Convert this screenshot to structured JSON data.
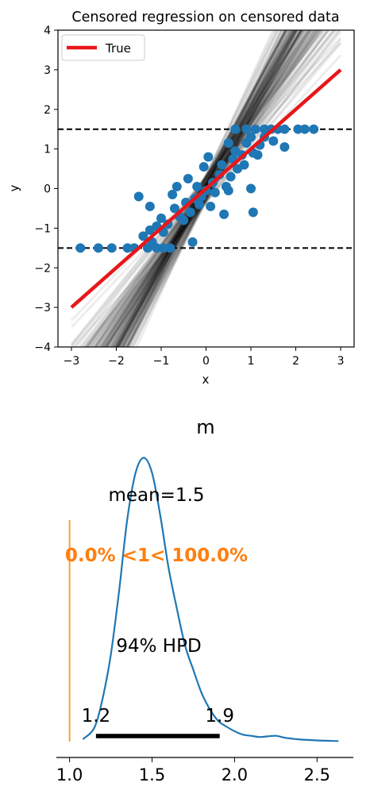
{
  "chart_data": [
    {
      "type": "scatter",
      "title": "Censored regression on censored data",
      "xlabel": "x",
      "ylabel": "y",
      "xlim": [
        -3.3,
        3.3
      ],
      "ylim": [
        -4,
        4
      ],
      "xticks": [
        -3,
        -2,
        -1,
        0,
        1,
        2,
        3
      ],
      "xtick_labels": [
        "−3",
        "−2",
        "−1",
        "0",
        "1",
        "2",
        "3"
      ],
      "yticks": [
        -4,
        -3,
        -2,
        -1,
        0,
        1,
        2,
        3,
        4
      ],
      "ytick_labels": [
        "−4",
        "−3",
        "−2",
        "−1",
        "0",
        "1",
        "2",
        "3",
        "4"
      ],
      "legend": {
        "placement": "top-left",
        "entries": [
          {
            "label": "True",
            "color": "#e8161a"
          }
        ]
      },
      "true_line": {
        "name": "True",
        "slope": 1,
        "intercept": 0,
        "x": [
          -3,
          3
        ],
        "color": "#e8161a"
      },
      "censor_lines": [
        -1.5,
        1.5
      ],
      "posterior_lines": {
        "slope_range": [
          1.1,
          2.6
        ],
        "intercept_range": [
          -0.35,
          0.35
        ],
        "color": "#000000"
      },
      "points_color": "#1f77b4",
      "points": [
        [
          -2.8,
          -1.5
        ],
        [
          -2.4,
          -1.5
        ],
        [
          -2.1,
          -1.5
        ],
        [
          -1.75,
          -1.5
        ],
        [
          -1.6,
          -1.5
        ],
        [
          -1.3,
          -1.5
        ],
        [
          -1.1,
          -1.5
        ],
        [
          -0.95,
          -1.5
        ],
        [
          -0.8,
          -1.5
        ],
        [
          -1.5,
          -0.2
        ],
        [
          -1.25,
          -0.45
        ],
        [
          -1.4,
          -1.2
        ],
        [
          -1.25,
          -1.05
        ],
        [
          -1.1,
          -0.95
        ],
        [
          -1.2,
          -1.35
        ],
        [
          -1.0,
          -0.75
        ],
        [
          -0.95,
          -1.1
        ],
        [
          -0.85,
          -0.9
        ],
        [
          -0.75,
          -0.15
        ],
        [
          -0.65,
          0.05
        ],
        [
          -0.7,
          -0.5
        ],
        [
          -0.6,
          -0.7
        ],
        [
          -0.5,
          -0.8
        ],
        [
          -0.45,
          -0.35
        ],
        [
          -0.4,
          0.25
        ],
        [
          -0.35,
          -0.6
        ],
        [
          -0.3,
          -1.35
        ],
        [
          -0.25,
          -0.25
        ],
        [
          -0.2,
          0.05
        ],
        [
          -0.15,
          -0.4
        ],
        [
          -0.1,
          -0.2
        ],
        [
          -0.05,
          0.55
        ],
        [
          0.0,
          -0.05
        ],
        [
          0.05,
          0.8
        ],
        [
          0.1,
          -0.45
        ],
        [
          0.15,
          0.15
        ],
        [
          0.2,
          -0.1
        ],
        [
          0.3,
          0.35
        ],
        [
          0.35,
          0.6
        ],
        [
          0.4,
          -0.65
        ],
        [
          0.45,
          0.05
        ],
        [
          0.5,
          -0.05
        ],
        [
          0.55,
          0.3
        ],
        [
          0.6,
          0.75
        ],
        [
          0.65,
          0.95
        ],
        [
          0.7,
          0.5
        ],
        [
          0.8,
          0.85
        ],
        [
          0.85,
          0.6
        ],
        [
          0.9,
          1.15
        ],
        [
          1.0,
          1.3
        ],
        [
          1.05,
          -0.6
        ],
        [
          1.0,
          0.0
        ],
        [
          1.05,
          0.9
        ],
        [
          1.15,
          0.85
        ],
        [
          1.2,
          1.1
        ],
        [
          1.3,
          1.3
        ],
        [
          1.5,
          1.2
        ],
        [
          1.75,
          1.05
        ],
        [
          0.5,
          1.15
        ],
        [
          0.65,
          1.5
        ],
        [
          0.9,
          1.5
        ],
        [
          1.1,
          1.5
        ],
        [
          1.3,
          1.5
        ],
        [
          1.45,
          1.5
        ],
        [
          1.6,
          1.5
        ],
        [
          1.75,
          1.5
        ],
        [
          2.05,
          1.5
        ],
        [
          2.2,
          1.5
        ],
        [
          2.4,
          1.5
        ]
      ]
    },
    {
      "type": "line",
      "title": "m",
      "xlim": [
        0.92,
        2.72
      ],
      "xticks": [
        1.0,
        1.5,
        2.0,
        2.5
      ],
      "xtick_labels": [
        "1.0",
        "1.5",
        "2.0",
        "2.5"
      ],
      "density_color": "#1f77b4",
      "x": [
        1.08,
        1.15,
        1.2,
        1.25,
        1.3,
        1.35,
        1.4,
        1.45,
        1.5,
        1.55,
        1.6,
        1.65,
        1.7,
        1.75,
        1.8,
        1.85,
        1.9,
        1.95,
        2.0,
        2.05,
        2.1,
        2.15,
        2.2,
        2.25,
        2.3,
        2.35,
        2.4,
        2.5,
        2.63
      ],
      "y": [
        0.02,
        0.12,
        0.37,
        0.75,
        1.3,
        1.92,
        2.32,
        2.45,
        2.32,
        1.95,
        1.5,
        1.15,
        0.83,
        0.62,
        0.42,
        0.28,
        0.18,
        0.13,
        0.09,
        0.06,
        0.05,
        0.04,
        0.045,
        0.05,
        0.035,
        0.025,
        0.018,
        0.01,
        0.005
      ],
      "ymax": 2.55,
      "mean_label": "mean=1.5",
      "ref_value": 1.0,
      "ref_color": "#f5a13f",
      "ref_label": "0.0% <1< 100.0%",
      "ref_label_color": "#ff7f0e",
      "hpd_label": "94% HPD",
      "hpd": [
        1.16,
        1.91
      ],
      "hpd_low_label": "1.2",
      "hpd_high_label": "1.9"
    }
  ]
}
